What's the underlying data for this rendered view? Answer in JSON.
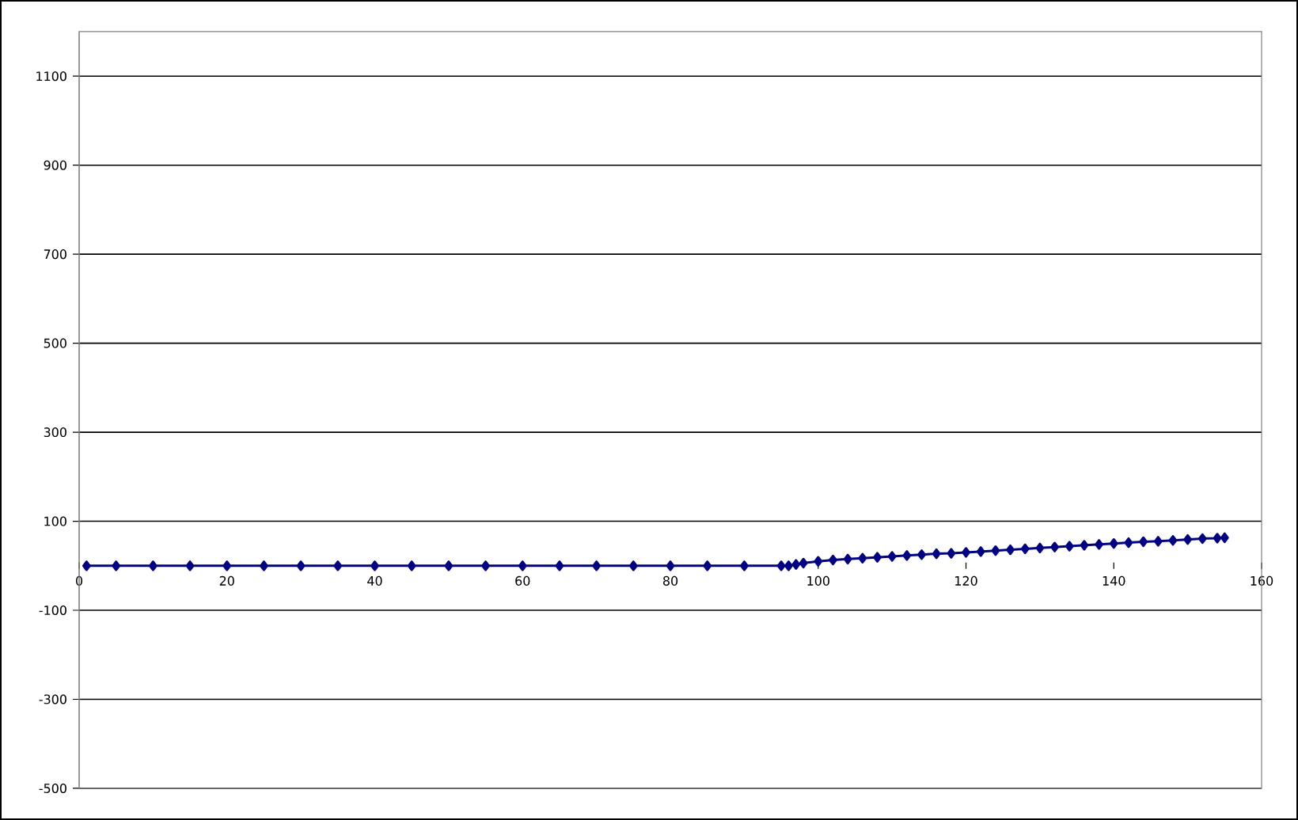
{
  "chart_data": {
    "type": "line",
    "x": [
      1,
      5,
      10,
      15,
      20,
      25,
      30,
      35,
      40,
      45,
      50,
      55,
      60,
      65,
      70,
      75,
      80,
      85,
      90,
      95,
      96,
      97,
      98,
      100,
      102,
      104,
      106,
      108,
      110,
      112,
      114,
      116,
      118,
      120,
      122,
      124,
      126,
      128,
      130,
      132,
      134,
      136,
      138,
      140,
      142,
      144,
      146,
      148,
      150,
      152,
      154,
      155
    ],
    "series": [
      {
        "color": "#000080",
        "values": [
          0,
          0,
          0,
          0,
          0,
          0,
          0,
          0,
          0,
          0,
          0,
          0,
          0,
          0,
          0,
          0,
          0,
          0,
          0,
          0,
          0,
          3,
          6,
          10,
          13,
          15,
          17,
          19,
          21,
          23,
          25,
          27,
          28,
          30,
          32,
          34,
          36,
          38,
          40,
          42,
          44,
          46,
          48,
          50,
          52,
          54,
          55,
          57,
          59,
          61,
          62,
          63
        ]
      }
    ],
    "xlim": [
      0,
      160
    ],
    "xticks": [
      0,
      20,
      40,
      60,
      80,
      100,
      120,
      140,
      160
    ],
    "ylim": [
      -500,
      1200
    ],
    "yticks": [
      -500,
      -300,
      -100,
      100,
      300,
      500,
      700,
      900,
      1100
    ],
    "grid": "y",
    "marker": "diamond",
    "line_style": "solid"
  }
}
